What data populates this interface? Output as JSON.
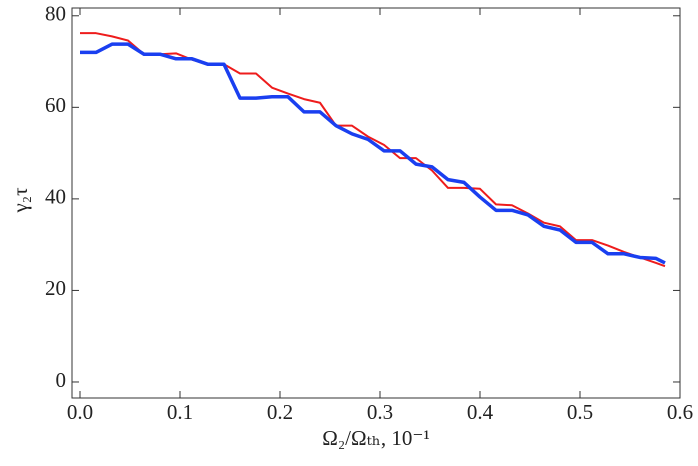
{
  "chart_data": {
    "type": "line",
    "x": [
      0,
      0.016,
      0.032,
      0.048,
      0.064,
      0.08,
      0.096,
      0.112,
      0.128,
      0.144,
      0.16,
      0.176,
      0.192,
      0.208,
      0.224,
      0.24,
      0.256,
      0.272,
      0.288,
      0.304,
      0.32,
      0.336,
      0.352,
      0.368,
      0.384,
      0.4,
      0.416,
      0.432,
      0.448,
      0.464,
      0.48,
      0.496,
      0.512,
      0.528,
      0.544,
      0.56,
      0.576,
      0.585
    ],
    "series": [
      {
        "color": "#ee1c1c",
        "width": 2,
        "values": [
          76.2,
          76.2,
          75.5,
          74.6,
          71.6,
          71.6,
          71.8,
          70.4,
          69.4,
          69.4,
          67.4,
          67.4,
          64.3,
          63,
          61.8,
          61,
          56,
          56,
          53.6,
          51.8,
          48.9,
          48.9,
          46.2,
          42.4,
          42.4,
          42.2,
          38.8,
          38.6,
          36.8,
          34.8,
          34,
          31,
          31,
          29.8,
          28.4,
          27.2,
          26,
          25.3
        ]
      },
      {
        "color": "#1a3ff0",
        "width": 3.5,
        "values": [
          72,
          72,
          73.8,
          73.8,
          71.6,
          71.6,
          70.6,
          70.6,
          69.4,
          69.4,
          62,
          62,
          62.3,
          62.3,
          59,
          59,
          56,
          54.2,
          53,
          50.5,
          50.5,
          47.6,
          47,
          44.2,
          43.6,
          40.4,
          37.5,
          37.5,
          36.5,
          34,
          33.2,
          30.5,
          30.5,
          28,
          28,
          27.2,
          27,
          26
        ]
      }
    ],
    "xlabel": "Ω₂/Ωₜₕ, 10⁻¹",
    "ylabel": "γ₂τ",
    "xlim": [
      -0.008,
      0.6
    ],
    "ylim": [
      -3.5,
      81.7
    ],
    "xticks": [
      {
        "value": 0,
        "label": "0.0"
      },
      0.1,
      0.2,
      0.3,
      0.4,
      0.5,
      0.6
    ],
    "yticks": [
      0,
      20,
      40,
      60,
      80
    ]
  }
}
